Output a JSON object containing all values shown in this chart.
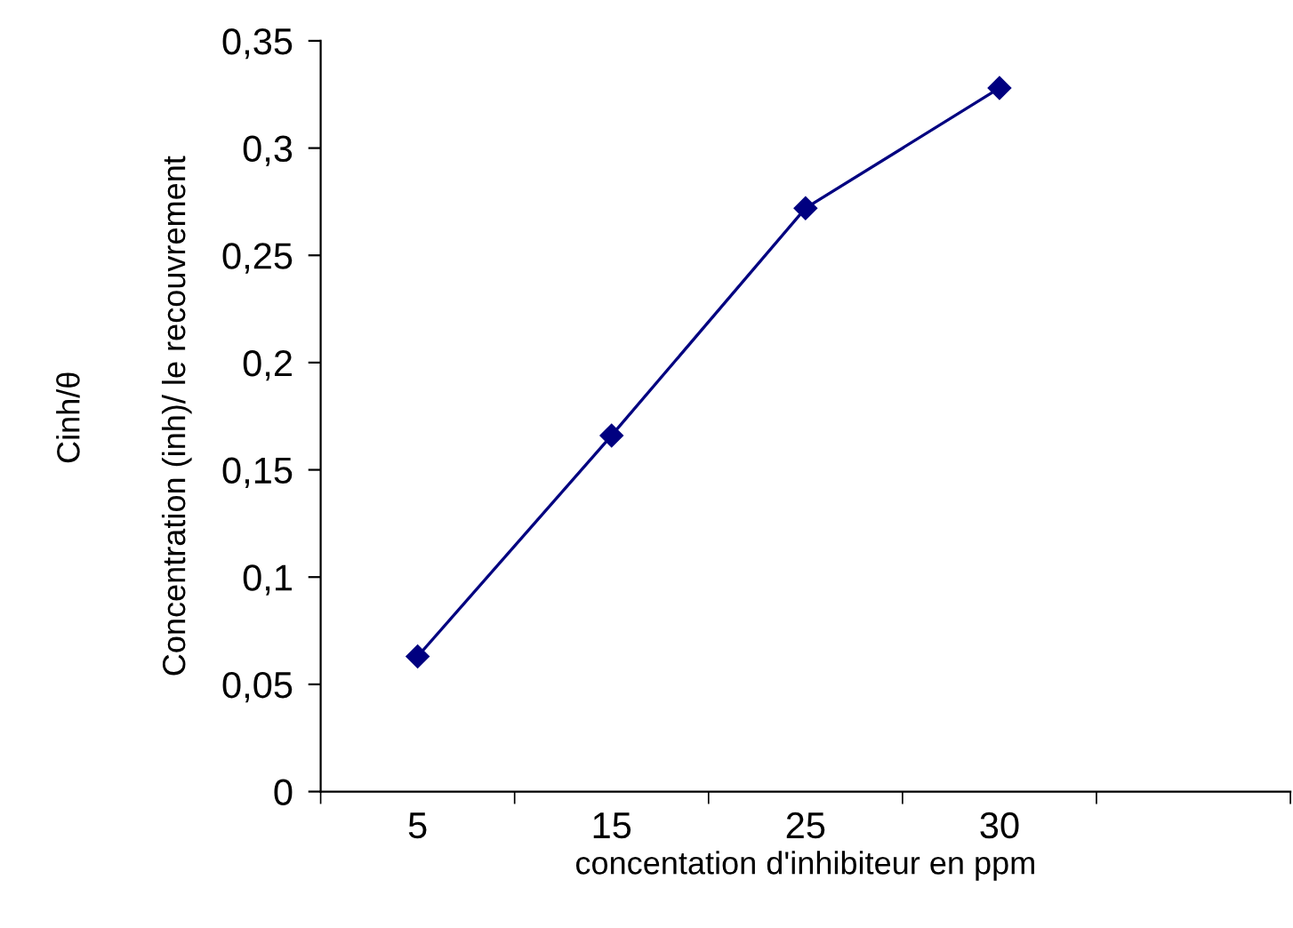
{
  "chart_data": {
    "type": "line",
    "xlabel": "concentation d'inhibiteur en ppm",
    "ylabel": "Concentration (inh)/ le recouvrement",
    "annotations": [
      "Cinh/θ"
    ],
    "categories": [
      "5",
      "15",
      "25",
      "30",
      null
    ],
    "series": [
      {
        "color": "#000080",
        "values": [
          0.063,
          0.166,
          0.272,
          0.328,
          null
        ]
      }
    ],
    "ylim": [
      0,
      0.35
    ],
    "yticks": [
      {
        "value": 0,
        "label": "0"
      },
      {
        "value": 0.05,
        "label": "0,05"
      },
      {
        "value": 0.1,
        "label": "0,1"
      },
      {
        "value": 0.15,
        "label": "0,15"
      },
      {
        "value": 0.2,
        "label": "0,2"
      },
      {
        "value": 0.25,
        "label": "0,25"
      },
      {
        "value": 0.3,
        "label": "0,3"
      },
      {
        "value": 0.35,
        "label": "0,35"
      }
    ],
    "grid": false,
    "legend": false,
    "marker": "diamond",
    "line_style": "solid"
  }
}
